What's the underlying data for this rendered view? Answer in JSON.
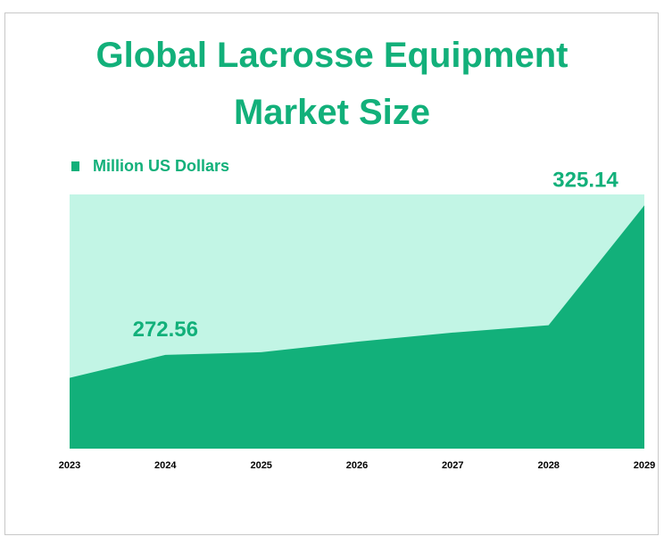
{
  "chart_data": {
    "type": "area",
    "title": [
      "Global  Lacrosse Equipment",
      "Market Size"
    ],
    "x": [
      "2023",
      "2024",
      "2025",
      "2026",
      "2027",
      "2028",
      "2029"
    ],
    "series": [
      {
        "name": "Million US Dollars",
        "values": [
          264.5,
          272.56,
          273.5,
          277.2,
          280.4,
          283.0,
          325.14
        ]
      }
    ],
    "data_labels": [
      {
        "index": 1,
        "text": "272.56"
      },
      {
        "index": 6,
        "text": "325.14"
      }
    ],
    "ymin": 239.6,
    "ymax": 329.0,
    "grid": false,
    "legend_position": "top-left",
    "colors": {
      "area": "#12b07a",
      "plot_background": "#c2f5e5",
      "title": "#12b07a",
      "axis_text": "#000000"
    }
  }
}
